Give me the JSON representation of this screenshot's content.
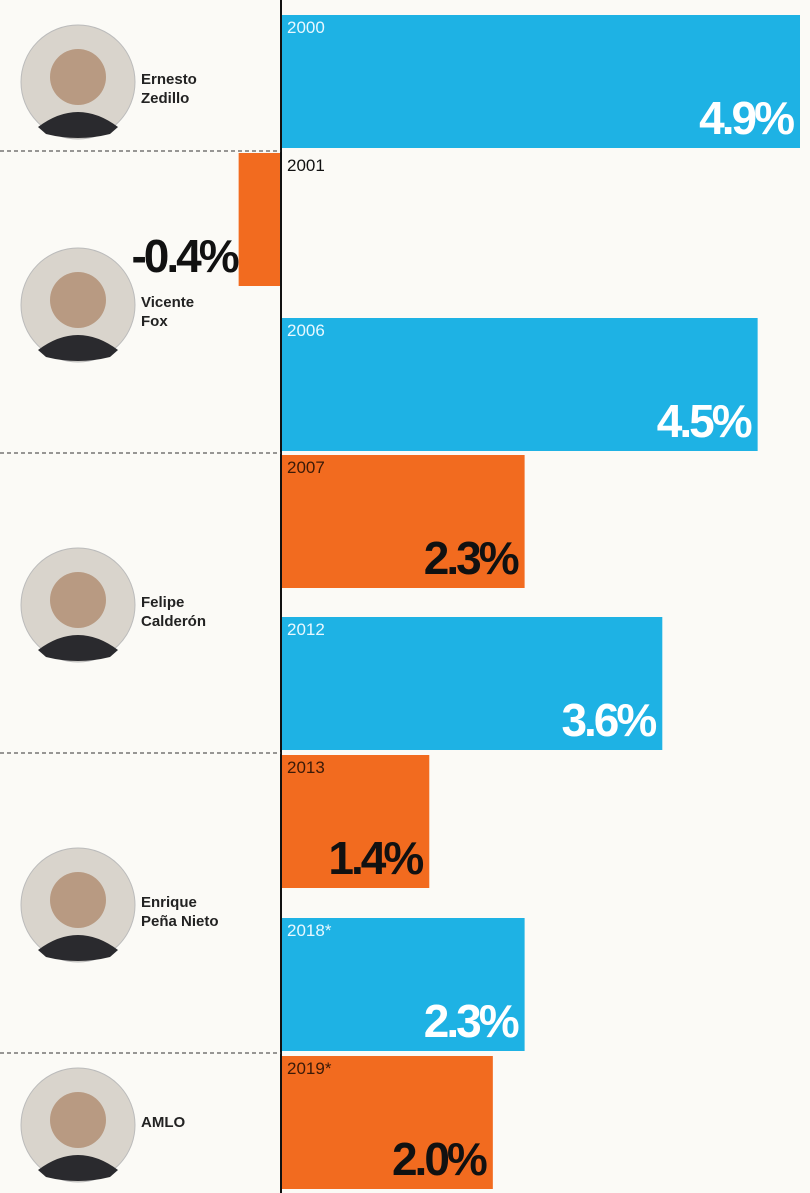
{
  "chart_data": {
    "type": "bar",
    "categories": [
      "2000",
      "2001",
      "2006",
      "2007",
      "2012",
      "2013",
      "2018*",
      "2019*"
    ],
    "values": [
      4.9,
      -0.4,
      4.5,
      2.3,
      3.6,
      1.4,
      2.3,
      2.0
    ],
    "value_labels": [
      "4.9%",
      "-0.4%",
      "4.5%",
      "2.3%",
      "3.6%",
      "1.4%",
      "2.3%",
      "2.0%"
    ],
    "colors": [
      "#1eb2e4",
      "#f26b1f",
      "#1eb2e4",
      "#f26b1f",
      "#1eb2e4",
      "#f26b1f",
      "#1eb2e4",
      "#f26b1f"
    ],
    "presidents": [
      "Ernesto Zedillo",
      "Vicente Fox",
      "Felipe Calderón",
      "Enrique Peña Nieto",
      "AMLO"
    ]
  }
}
